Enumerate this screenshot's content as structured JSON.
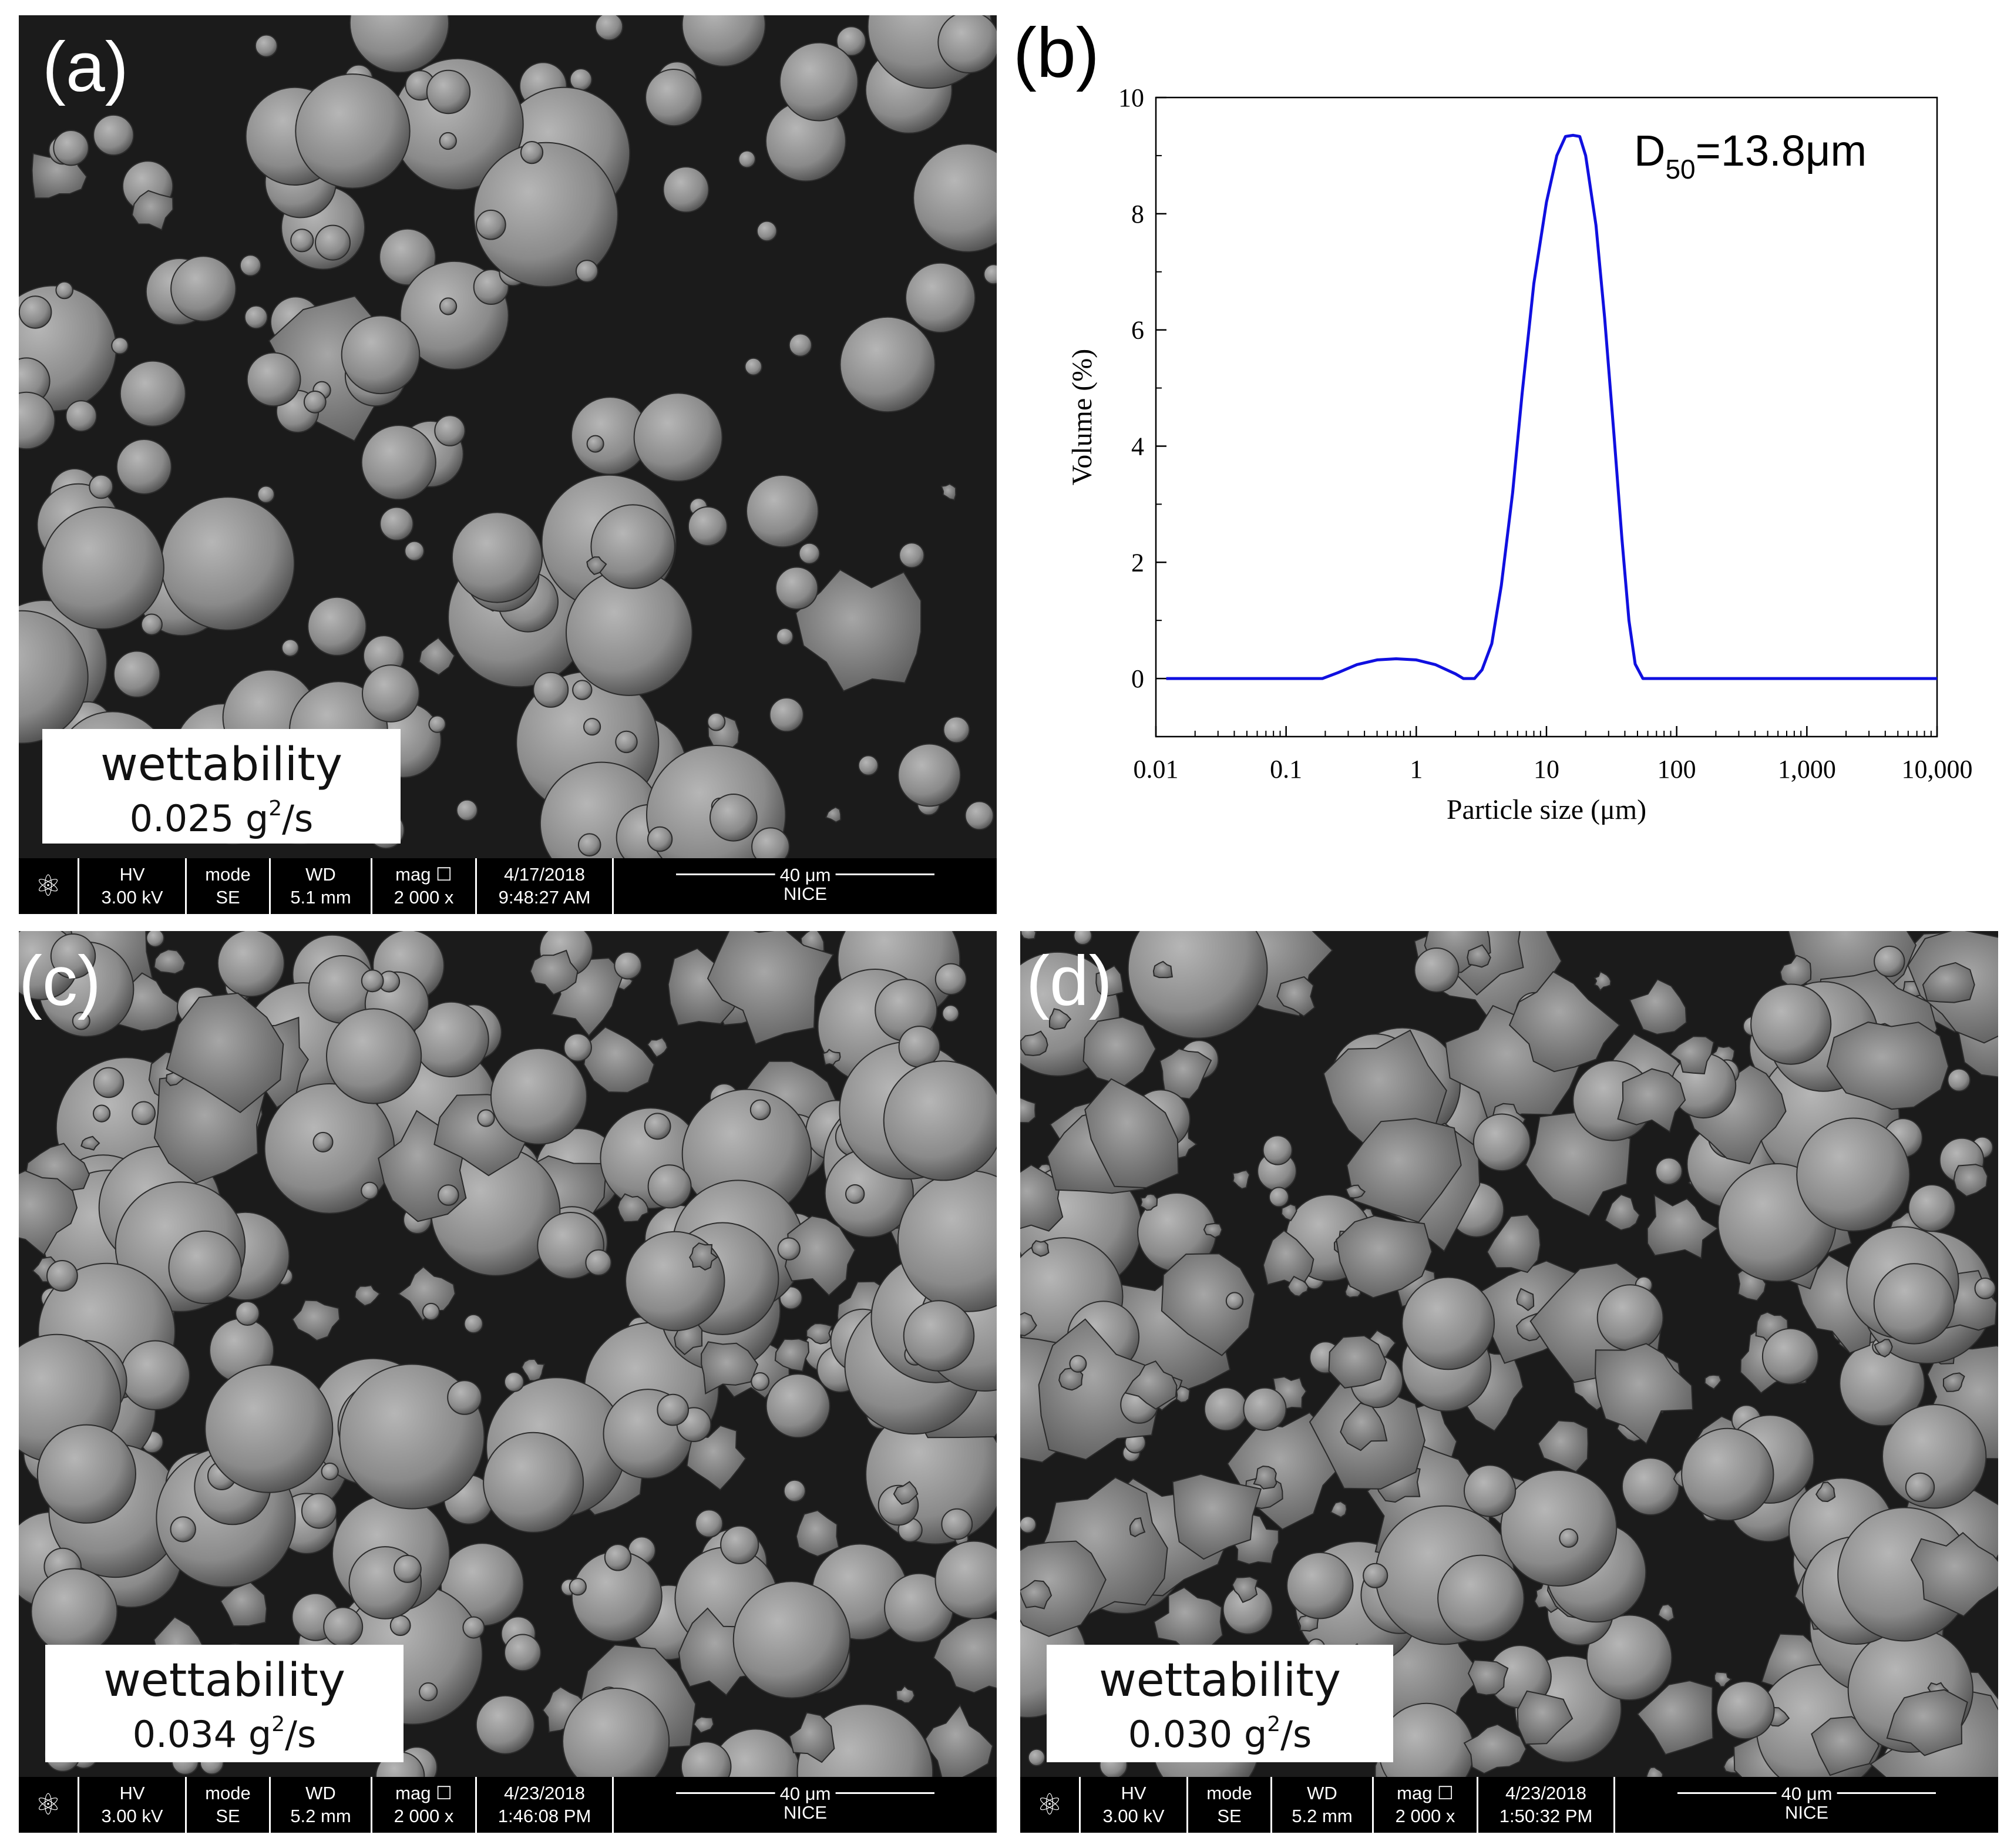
{
  "panels": {
    "a": {
      "letter": "(a)",
      "wettability_label": "wettability",
      "wettability_value": "0.025 g",
      "wettability_sup": "2",
      "wettability_unit": "/s",
      "databar": {
        "hv_label": "HV",
        "hv_value": "3.00 kV",
        "mode_label": "mode",
        "mode_value": "SE",
        "wd_label": "WD",
        "wd_value": "5.1 mm",
        "mag_label": "mag ☐",
        "mag_value": "2 000 x",
        "date": "4/17/2018",
        "time": "9:48:27 AM",
        "scale": "40 μm",
        "lab": "NICE"
      }
    },
    "c": {
      "letter": "(c)",
      "wettability_label": "wettability",
      "wettability_value": "0.034 g",
      "wettability_sup": "2",
      "wettability_unit": "/s",
      "databar": {
        "hv_label": "HV",
        "hv_value": "3.00 kV",
        "mode_label": "mode",
        "mode_value": "SE",
        "wd_label": "WD",
        "wd_value": "5.2 mm",
        "mag_label": "mag ☐",
        "mag_value": "2 000 x",
        "date": "4/23/2018",
        "time": "1:46:08 PM",
        "scale": "40 μm",
        "lab": "NICE"
      }
    },
    "d": {
      "letter": "(d)",
      "wettability_label": "wettability",
      "wettability_value": "0.030 g",
      "wettability_sup": "2",
      "wettability_unit": "/s",
      "databar": {
        "hv_label": "HV",
        "hv_value": "3.00 kV",
        "mode_label": "mode",
        "mode_value": "SE",
        "wd_label": "WD",
        "wd_value": "5.2 mm",
        "mag_label": "mag ☐",
        "mag_value": "2 000 x",
        "date": "4/23/2018",
        "time": "1:50:32 PM",
        "scale": "40 μm",
        "lab": "NICE"
      }
    },
    "b": {
      "letter": "(b)"
    }
  },
  "chart_data": {
    "type": "line",
    "xlabel": "Particle size (μm)",
    "ylabel": "Volume (%)",
    "xscale": "log",
    "xlim": [
      0.01,
      10000
    ],
    "ylim": [
      -1,
      10
    ],
    "xticks": [
      0.01,
      0.1,
      1,
      10,
      100,
      1000,
      10000
    ],
    "xtick_labels": [
      "0.01",
      "0.1",
      "1",
      "10",
      "100",
      "1,000",
      "10,000"
    ],
    "yticks": [
      0,
      2,
      4,
      6,
      8,
      10
    ],
    "ytick_labels": [
      "0",
      "2",
      "4",
      "6",
      "8",
      "10"
    ],
    "annotation": {
      "main": "D",
      "sub": "50",
      "rest": "=13.8μm"
    },
    "line_color": "#1010e0",
    "series": [
      {
        "x": [
          0.012,
          0.19,
          0.25,
          0.35,
          0.5,
          0.7,
          1.0,
          1.4,
          2.0,
          2.3,
          2.8,
          3.2,
          3.8,
          4.5,
          5.5,
          6.5,
          8,
          10,
          12,
          14,
          16,
          18,
          20,
          24,
          28,
          33,
          38,
          43,
          48,
          55,
          70,
          100,
          1000,
          10000
        ],
        "y": [
          0,
          0,
          0.1,
          0.24,
          0.32,
          0.34,
          0.32,
          0.24,
          0.08,
          0,
          0,
          0.15,
          0.6,
          1.6,
          3.2,
          4.9,
          6.8,
          8.2,
          9.0,
          9.33,
          9.35,
          9.33,
          9.0,
          7.8,
          6.2,
          4.2,
          2.4,
          1.0,
          0.25,
          0,
          0,
          0,
          0,
          0
        ]
      }
    ]
  },
  "colors": {
    "sem_background": "#1b1b1b",
    "particle": "#8c8c8c"
  }
}
